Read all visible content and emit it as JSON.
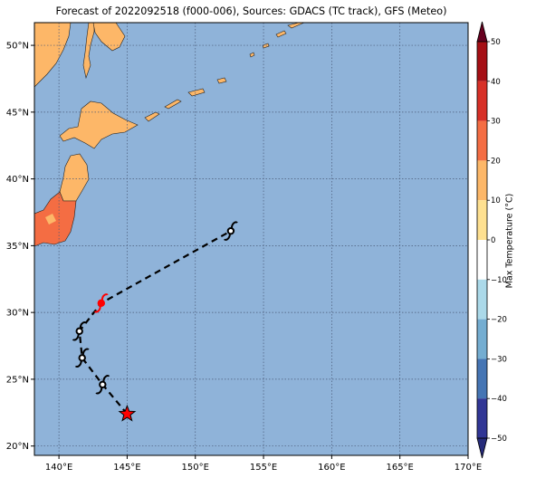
{
  "title": "Forecast of 2022092518 (f000-006), Sources: GDACS (TC track), GFS (Meteo)",
  "map": {
    "lon_range": [
      138.2,
      170
    ],
    "lat_range": [
      19.3,
      51.7
    ],
    "lon_ticks": [
      140,
      145,
      150,
      155,
      160,
      165,
      170
    ],
    "lon_labels": [
      "140°E",
      "145°E",
      "150°E",
      "155°E",
      "160°E",
      "165°E",
      "170°E"
    ],
    "lat_ticks": [
      20,
      25,
      30,
      35,
      40,
      45,
      50
    ],
    "lat_labels": [
      "20°N",
      "25°N",
      "30°N",
      "35°N",
      "40°N",
      "45°N",
      "50°N"
    ],
    "ocean_color": "#8fb3d9",
    "land_color": "#fdb768",
    "warm_land_color": "#f46d43",
    "grid": "dotted"
  },
  "track": {
    "style": "dashed",
    "points": [
      {
        "lon": 145.0,
        "lat": 22.4,
        "kind": "current-position-star"
      },
      {
        "lon": 143.2,
        "lat": 24.6,
        "kind": "typhoon"
      },
      {
        "lon": 141.7,
        "lat": 26.6,
        "kind": "typhoon"
      },
      {
        "lon": 141.5,
        "lat": 28.6,
        "kind": "typhoon"
      },
      {
        "lon": 143.1,
        "lat": 30.7,
        "kind": "typhoon-highlight"
      },
      {
        "lon": 152.6,
        "lat": 36.1,
        "kind": "typhoon"
      }
    ],
    "symbol_color": "#000000",
    "highlight_color": "#ff0000",
    "star_color": "#ff0000"
  },
  "colorbar": {
    "label": "Max Temperature (°C)",
    "ticks": [
      "50",
      "40",
      "30",
      "20",
      "10",
      "0",
      "−10",
      "−20",
      "−30",
      "−40",
      "−50"
    ],
    "colors": [
      "#67001f",
      "#a50f15",
      "#d73027",
      "#f46d43",
      "#fdb768",
      "#fee090",
      "#ffffff",
      "#abd9e9",
      "#74add1",
      "#4575b4",
      "#313695",
      "#262b7a"
    ]
  }
}
